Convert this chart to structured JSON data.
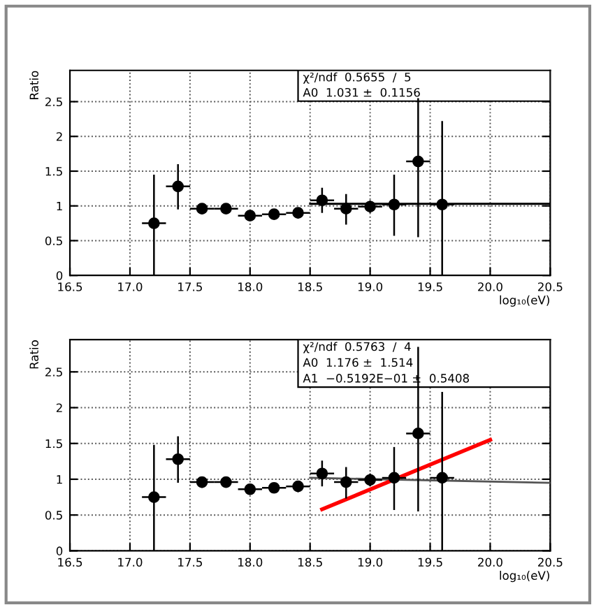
{
  "chart_data": [
    {
      "type": "scatter",
      "xlabel": "log₁₀(eV)",
      "ylabel": "Ratio",
      "xlim": [
        16.5,
        20.5
      ],
      "ylim": [
        0,
        2.95
      ],
      "xticks": [
        {
          "value": 16.5,
          "label": "16.5"
        },
        {
          "value": 17.0,
          "label": "17.0"
        },
        {
          "value": 17.5,
          "label": "17.5"
        },
        {
          "value": 18.0,
          "label": "18.0"
        },
        {
          "value": 18.5,
          "label": "18.5"
        },
        {
          "value": 19.0,
          "label": "19.0"
        },
        {
          "value": 19.5,
          "label": "19.5"
        },
        {
          "value": 20.0,
          "label": "20.0"
        },
        {
          "value": 20.5,
          "label": "20.5"
        }
      ],
      "yticks": [
        0,
        0.5,
        1,
        1.5,
        2,
        2.5
      ],
      "grid": true,
      "annotations": [
        "χ²/ndf  0.5655  /  5",
        "A0  1.031 ±  0.1156"
      ],
      "series": [
        {
          "marker": "circle",
          "color": "#000000",
          "x": [
            17.2,
            17.4,
            17.6,
            17.8,
            18.0,
            18.2,
            18.4,
            18.6,
            18.8,
            19.0,
            19.2,
            19.4,
            19.6
          ],
          "values": [
            0.75,
            1.28,
            0.96,
            0.96,
            0.86,
            0.88,
            0.9,
            1.08,
            0.96,
            0.99,
            1.02,
            1.64,
            1.02
          ],
          "errors": [
            [
              0,
              1.45
            ],
            [
              0.95,
              1.6
            ],
            [
              0.88,
              1.03
            ],
            [
              0.9,
              1.02
            ],
            [
              0.82,
              0.9
            ],
            [
              0.82,
              0.94
            ],
            [
              0.82,
              0.97
            ],
            [
              0.9,
              1.26
            ],
            [
              0.73,
              1.17
            ],
            [
              0.9,
              1.08
            ],
            [
              0.57,
              1.45
            ],
            [
              0.55,
              2.55
            ],
            [
              0,
              2.22
            ]
          ],
          "xerrors": [
            0.1,
            0.1,
            0.1,
            0.1,
            0.1,
            0.1,
            0.1,
            0.1,
            0.1,
            0.1,
            0.1,
            0.1,
            0.1
          ]
        },
        {
          "type": "line",
          "marker": "none",
          "color": "#000000",
          "x": [
            18.5,
            20.5
          ],
          "values": [
            1.03,
            1.03
          ]
        }
      ]
    },
    {
      "type": "scatter",
      "xlabel": "log₁₀(eV)",
      "ylabel": "Ratio",
      "xlim": [
        16.5,
        20.5
      ],
      "ylim": [
        0,
        2.95
      ],
      "xticks": [
        {
          "value": 16.5,
          "label": "16.5"
        },
        {
          "value": 17.0,
          "label": "17.0"
        },
        {
          "value": 17.5,
          "label": "17.5"
        },
        {
          "value": 18.0,
          "label": "18.0"
        },
        {
          "value": 18.5,
          "label": "18.5"
        },
        {
          "value": 19.0,
          "label": "19.0"
        },
        {
          "value": 19.5,
          "label": "19.5"
        },
        {
          "value": 20.0,
          "label": "20.0"
        },
        {
          "value": 20.5,
          "label": "20.5"
        }
      ],
      "yticks": [
        0,
        0.5,
        1,
        1.5,
        2,
        2.5
      ],
      "grid": true,
      "annotations": [
        "χ²/ndf  0.5763  /  4",
        "A0  1.176 ±  1.514",
        "A1  −0.5192E−01 ±  0.5408"
      ],
      "series": [
        {
          "marker": "circle",
          "color": "#000000",
          "x": [
            17.2,
            17.4,
            17.6,
            17.8,
            18.0,
            18.2,
            18.4,
            18.6,
            18.8,
            19.0,
            19.2,
            19.4,
            19.6
          ],
          "values": [
            0.75,
            1.28,
            0.96,
            0.96,
            0.86,
            0.88,
            0.9,
            1.08,
            0.96,
            0.99,
            1.02,
            1.64,
            1.02
          ],
          "errors": [
            [
              0,
              1.48
            ],
            [
              0.95,
              1.6
            ],
            [
              0.88,
              1.03
            ],
            [
              0.9,
              1.02
            ],
            [
              0.82,
              0.9
            ],
            [
              0.82,
              0.94
            ],
            [
              0.82,
              0.97
            ],
            [
              0.9,
              1.26
            ],
            [
              0.73,
              1.17
            ],
            [
              0.9,
              1.08
            ],
            [
              0.57,
              1.45
            ],
            [
              0.55,
              2.85
            ],
            [
              0,
              2.22
            ]
          ],
          "xerrors": [
            0.1,
            0.1,
            0.1,
            0.1,
            0.1,
            0.1,
            0.1,
            0.1,
            0.1,
            0.1,
            0.1,
            0.1,
            0.1
          ]
        },
        {
          "type": "line",
          "marker": "none",
          "color": "#555555",
          "x": [
            18.5,
            20.5
          ],
          "values": [
            1.02,
            0.95
          ]
        },
        {
          "type": "line",
          "marker": "none",
          "color": "#ff0000",
          "x": [
            18.6,
            20.0
          ],
          "values": [
            0.58,
            1.55
          ]
        }
      ]
    }
  ]
}
